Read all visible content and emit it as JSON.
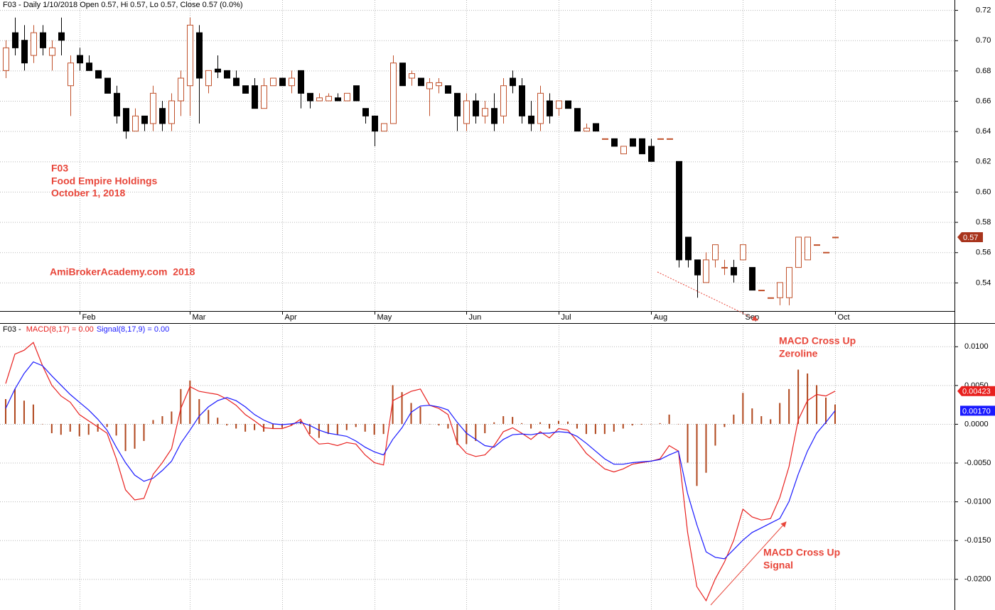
{
  "chart_data": [
    {
      "type": "candlestick",
      "title": "F03 - Daily 1/10/2018 Open 0.57, Hi 0.57, Lo 0.57, Close 0.57 (0.0%)",
      "categories": [
        null,
        null,
        null,
        null,
        null,
        null,
        null,
        null,
        "Feb",
        null,
        null,
        null,
        null,
        null,
        null,
        null,
        null,
        null,
        null,
        null,
        "Mar",
        null,
        null,
        null,
        null,
        null,
        null,
        null,
        null,
        null,
        "Apr",
        null,
        null,
        null,
        null,
        null,
        null,
        null,
        null,
        null,
        "May",
        null,
        null,
        null,
        null,
        null,
        null,
        null,
        null,
        null,
        "Jun",
        null,
        null,
        null,
        null,
        null,
        null,
        null,
        null,
        null,
        "Jul",
        null,
        null,
        null,
        null,
        null,
        null,
        null,
        null,
        null,
        "Aug",
        null,
        null,
        null,
        null,
        null,
        null,
        null,
        null,
        null,
        "Sep",
        null,
        null,
        null,
        null,
        null,
        null,
        null,
        null,
        null,
        "Oct"
      ],
      "open": [
        0.68,
        0.705,
        0.7,
        0.69,
        0.705,
        0.69,
        0.705,
        0.67,
        0.69,
        0.685,
        0.68,
        0.675,
        0.665,
        0.655,
        0.64,
        0.65,
        0.645,
        0.655,
        0.645,
        0.66,
        0.67,
        0.705,
        0.67,
        0.681,
        0.68,
        0.675,
        0.67,
        0.67,
        0.655,
        0.67,
        0.675,
        0.67,
        0.68,
        0.665,
        0.66,
        0.66,
        0.662,
        0.66,
        0.67,
        0.655,
        0.65,
        0.64,
        0.645,
        0.685,
        0.675,
        0.675,
        0.668,
        0.67,
        0.67,
        0.665,
        0.645,
        0.66,
        0.65,
        0.655,
        0.65,
        0.675,
        0.67,
        0.65,
        0.645,
        0.66,
        0.655,
        0.66,
        0.655,
        0.64,
        0.645,
        0.635,
        0.635,
        0.625,
        0.635,
        0.635,
        0.63,
        0.635,
        0.635,
        0.62,
        0.57,
        0.555,
        0.54,
        0.555,
        0.55,
        0.55,
        0.555,
        0.55,
        0.535,
        0.53,
        0.53,
        0.53,
        0.55,
        0.555,
        0.565,
        0.56,
        0.57
      ],
      "high": [
        0.7,
        0.715,
        0.71,
        0.71,
        0.71,
        0.7,
        0.715,
        0.69,
        0.695,
        0.69,
        0.68,
        0.675,
        0.67,
        0.655,
        0.655,
        0.65,
        0.67,
        0.66,
        0.665,
        0.68,
        0.715,
        0.71,
        0.68,
        0.69,
        0.68,
        0.68,
        0.67,
        0.675,
        0.675,
        0.675,
        0.675,
        0.68,
        0.68,
        0.665,
        0.665,
        0.665,
        0.665,
        0.665,
        0.67,
        0.655,
        0.65,
        0.645,
        0.69,
        0.685,
        0.68,
        0.675,
        0.675,
        0.675,
        0.67,
        0.665,
        0.665,
        0.665,
        0.66,
        0.665,
        0.675,
        0.68,
        0.675,
        0.66,
        0.67,
        0.665,
        0.66,
        0.66,
        0.655,
        0.645,
        0.645,
        0.635,
        0.635,
        0.63,
        0.635,
        0.635,
        0.635,
        0.635,
        0.635,
        0.62,
        0.57,
        0.555,
        0.56,
        0.565,
        0.555,
        0.555,
        0.565,
        0.55,
        0.535,
        0.53,
        0.54,
        0.55,
        0.57,
        0.57,
        0.565,
        0.56,
        0.57
      ],
      "low": [
        0.675,
        0.69,
        0.68,
        0.685,
        0.69,
        0.68,
        0.69,
        0.65,
        0.68,
        0.68,
        0.675,
        0.665,
        0.645,
        0.635,
        0.64,
        0.64,
        0.64,
        0.64,
        0.64,
        0.65,
        0.65,
        0.645,
        0.665,
        0.675,
        0.675,
        0.67,
        0.665,
        0.655,
        0.655,
        0.67,
        0.67,
        0.665,
        0.655,
        0.655,
        0.66,
        0.66,
        0.66,
        0.66,
        0.66,
        0.645,
        0.63,
        0.64,
        0.645,
        0.67,
        0.67,
        0.67,
        0.65,
        0.665,
        0.665,
        0.64,
        0.64,
        0.645,
        0.645,
        0.64,
        0.645,
        0.665,
        0.645,
        0.64,
        0.64,
        0.645,
        0.65,
        0.655,
        0.64,
        0.64,
        0.64,
        0.635,
        0.63,
        0.625,
        0.63,
        0.625,
        0.62,
        0.635,
        0.635,
        0.55,
        0.55,
        0.53,
        0.54,
        0.55,
        0.545,
        0.54,
        0.555,
        0.535,
        0.535,
        0.53,
        0.525,
        0.525,
        0.55,
        0.555,
        0.565,
        0.56,
        0.57
      ],
      "close": [
        0.695,
        0.695,
        0.685,
        0.705,
        0.695,
        0.695,
        0.7,
        0.685,
        0.685,
        0.68,
        0.675,
        0.665,
        0.65,
        0.64,
        0.65,
        0.645,
        0.665,
        0.645,
        0.66,
        0.675,
        0.71,
        0.675,
        0.68,
        0.679,
        0.675,
        0.67,
        0.665,
        0.655,
        0.67,
        0.675,
        0.67,
        0.675,
        0.665,
        0.66,
        0.662,
        0.663,
        0.66,
        0.665,
        0.66,
        0.65,
        0.64,
        0.645,
        0.685,
        0.67,
        0.678,
        0.67,
        0.672,
        0.672,
        0.665,
        0.65,
        0.66,
        0.65,
        0.655,
        0.645,
        0.67,
        0.67,
        0.65,
        0.645,
        0.665,
        0.65,
        0.66,
        0.655,
        0.64,
        0.642,
        0.64,
        0.635,
        0.63,
        0.63,
        0.63,
        0.625,
        0.62,
        0.635,
        0.635,
        0.555,
        0.555,
        0.545,
        0.555,
        0.565,
        0.55,
        0.545,
        0.565,
        0.535,
        0.535,
        0.53,
        0.54,
        0.55,
        0.57,
        0.57,
        0.565,
        0.56,
        0.57
      ],
      "up_color": "#c0502a",
      "down_color": "#000000",
      "ylim": [
        0.5212,
        0.7266
      ],
      "yticks": [
        0.54,
        0.56,
        0.58,
        {
          "value": 0.6,
          "label": "0.60"
        },
        0.62,
        0.64,
        0.66,
        0.68,
        {
          "value": 0.7,
          "label": "0.70"
        },
        0.72
      ],
      "grid": true,
      "last_label": "0.57",
      "last_label_color": "#a8341c",
      "annotations": [
        "F03",
        "Food Empire Holdings",
        "October 1, 2018",
        "AmiBrokerAcademy.com  2018"
      ]
    },
    {
      "type": "macd",
      "title": "F03 - ",
      "series": [
        {
          "name": "MACD(8,17) = 0.00",
          "color": "#e8201e",
          "style": "line",
          "last_label": "0.00423",
          "values": [
            0.0052,
            0.009,
            0.0095,
            0.0105,
            0.0075,
            0.005,
            0.0036,
            0.0028,
            0.0012,
            0.0004,
            -0.0004,
            -0.0012,
            -0.0045,
            -0.0085,
            -0.0098,
            -0.0096,
            -0.0065,
            -0.005,
            -0.0032,
            0.002,
            0.0048,
            0.0042,
            0.004,
            0.0038,
            0.0032,
            0.0024,
            0.0012,
            0.0004,
            -0.0005,
            -0.0006,
            -0.0006,
            -0.0002,
            0.0006,
            -0.0015,
            -0.0026,
            -0.0025,
            -0.0028,
            -0.0024,
            -0.0026,
            -0.004,
            -0.005,
            -0.0053,
            0.003,
            0.0036,
            0.0042,
            0.0045,
            0.0024,
            0.002,
            0.0012,
            -0.0025,
            -0.0038,
            -0.0042,
            -0.004,
            -0.0028,
            -0.001,
            -0.0005,
            -0.0012,
            -0.002,
            -0.001,
            -0.0018,
            -0.0006,
            -0.0008,
            -0.0022,
            -0.0038,
            -0.0048,
            -0.0058,
            -0.0062,
            -0.0058,
            -0.0052,
            -0.005,
            -0.0048,
            -0.0045,
            -0.0028,
            -0.0035,
            -0.014,
            -0.021,
            -0.0228,
            -0.02,
            -0.0178,
            -0.015,
            -0.011,
            -0.012,
            -0.0124,
            -0.0122,
            -0.0095,
            -0.0055,
            0.0005,
            0.003,
            0.0038,
            0.0036,
            0.00423
          ]
        },
        {
          "name": "Signal(8,17,9) = 0.00",
          "color": "#1a1aff",
          "style": "line",
          "last_label": "0.00170",
          "values": [
            0.002,
            0.0045,
            0.0065,
            0.008,
            0.0075,
            0.0062,
            0.005,
            0.0038,
            0.0028,
            0.0018,
            0.0006,
            -0.0008,
            -0.003,
            -0.005,
            -0.0066,
            -0.0074,
            -0.007,
            -0.006,
            -0.0048,
            -0.0025,
            -0.0008,
            0.001,
            0.0022,
            0.003,
            0.0034,
            0.003,
            0.0022,
            0.0012,
            0.0005,
            0,
            -0.0001,
            0,
            0.0002,
            -0.0002,
            -0.0008,
            -0.0012,
            -0.0014,
            -0.0016,
            -0.0022,
            -0.003,
            -0.0036,
            -0.004,
            -0.002,
            -0.0005,
            0.0015,
            0.0023,
            0.0024,
            0.0022,
            0.0018,
            0.0002,
            -0.0012,
            -0.002,
            -0.0028,
            -0.003,
            -0.002,
            -0.0014,
            -0.0013,
            -0.0014,
            -0.0012,
            -0.0012,
            -0.001,
            -0.0011,
            -0.0016,
            -0.0025,
            -0.0035,
            -0.0045,
            -0.0052,
            -0.0052,
            -0.005,
            -0.0049,
            -0.0048,
            -0.0046,
            -0.004,
            -0.0035,
            -0.009,
            -0.013,
            -0.0165,
            -0.0172,
            -0.0174,
            -0.0162,
            -0.015,
            -0.014,
            -0.0134,
            -0.0128,
            -0.0122,
            -0.01,
            -0.0065,
            -0.0035,
            -0.0012,
            0.0002,
            0.0017
          ]
        },
        {
          "color": "#b0461c",
          "style": "histogram",
          "values": [
            0.0032,
            0.0045,
            0.003,
            0.0025,
            0,
            -0.0012,
            -0.0014,
            -0.001,
            -0.0016,
            -0.0014,
            -0.001,
            -0.0004,
            -0.0015,
            -0.0035,
            -0.0032,
            -0.0022,
            0.0005,
            0.001,
            0.0016,
            0.0045,
            0.0056,
            0.0032,
            0.0018,
            0.0008,
            -0.0002,
            -0.0006,
            -0.001,
            -0.0008,
            -0.001,
            -0.0006,
            -0.0005,
            -0.0002,
            0.0004,
            -0.0013,
            -0.0018,
            -0.0013,
            -0.0014,
            -0.0008,
            -0.0004,
            -0.001,
            -0.0014,
            -0.0013,
            0.005,
            0.0041,
            0.0027,
            0.0022,
            0,
            -0.0002,
            -0.0006,
            -0.0027,
            -0.0026,
            -0.0022,
            -0.0012,
            0.0002,
            0.001,
            0.0009,
            0.0001,
            -0.0006,
            0.0002,
            -0.0006,
            0.0004,
            0.0003,
            -0.0006,
            -0.0013,
            -0.0013,
            -0.0013,
            -0.001,
            -0.0006,
            -0.0002,
            -0.0001,
            0,
            0.0001,
            0.0012,
            0,
            -0.005,
            -0.008,
            -0.0063,
            -0.0028,
            -0.0004,
            0.0012,
            0.004,
            0.002,
            0.001,
            0.0006,
            0.0027,
            0.0045,
            0.007,
            0.0065,
            0.005,
            0.0034,
            0.0025
          ]
        }
      ],
      "ylim": [
        -0.024,
        0.013
      ],
      "yticks": [
        {
          "value": 0.01,
          "label": "0.0100"
        },
        {
          "value": 0.005,
          "label": "0.0050"
        },
        {
          "value": 0,
          "label": "0.0000"
        },
        {
          "value": -0.005,
          "label": "-0.0050"
        },
        {
          "value": -0.01,
          "label": "-0.0100"
        },
        {
          "value": -0.015,
          "label": "-0.0150"
        },
        {
          "value": -0.02,
          "label": "-0.0200"
        }
      ],
      "grid": true,
      "annotations": [
        "MACD Cross Up",
        "Zeroline",
        "MACD Cross Up",
        "Signal"
      ]
    }
  ]
}
